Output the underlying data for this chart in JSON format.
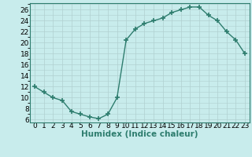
{
  "x": [
    0,
    1,
    2,
    3,
    4,
    5,
    6,
    7,
    8,
    9,
    10,
    11,
    12,
    13,
    14,
    15,
    16,
    17,
    18,
    19,
    20,
    21,
    22,
    23
  ],
  "y": [
    12,
    11,
    10,
    9.5,
    7.5,
    7,
    6.5,
    6.2,
    7,
    10,
    20.5,
    22.5,
    23.5,
    24,
    24.5,
    25.5,
    26,
    26.5,
    26.5,
    25,
    24,
    22,
    20.5,
    18
  ],
  "line_color": "#2e7d6e",
  "marker": "+",
  "marker_size": 4,
  "marker_lw": 1.2,
  "bg_color": "#c8ecec",
  "grid_color": "#b0d0d0",
  "xlabel": "Humidex (Indice chaleur)",
  "xlim": [
    -0.5,
    23.5
  ],
  "ylim": [
    5.5,
    27.2
  ],
  "yticks": [
    6,
    8,
    10,
    12,
    14,
    16,
    18,
    20,
    22,
    24,
    26
  ],
  "xticks": [
    0,
    1,
    2,
    3,
    4,
    5,
    6,
    7,
    8,
    9,
    10,
    11,
    12,
    13,
    14,
    15,
    16,
    17,
    18,
    19,
    20,
    21,
    22,
    23
  ],
  "xlabel_fontsize": 7.5,
  "tick_fontsize": 6.5,
  "linewidth": 1.0
}
